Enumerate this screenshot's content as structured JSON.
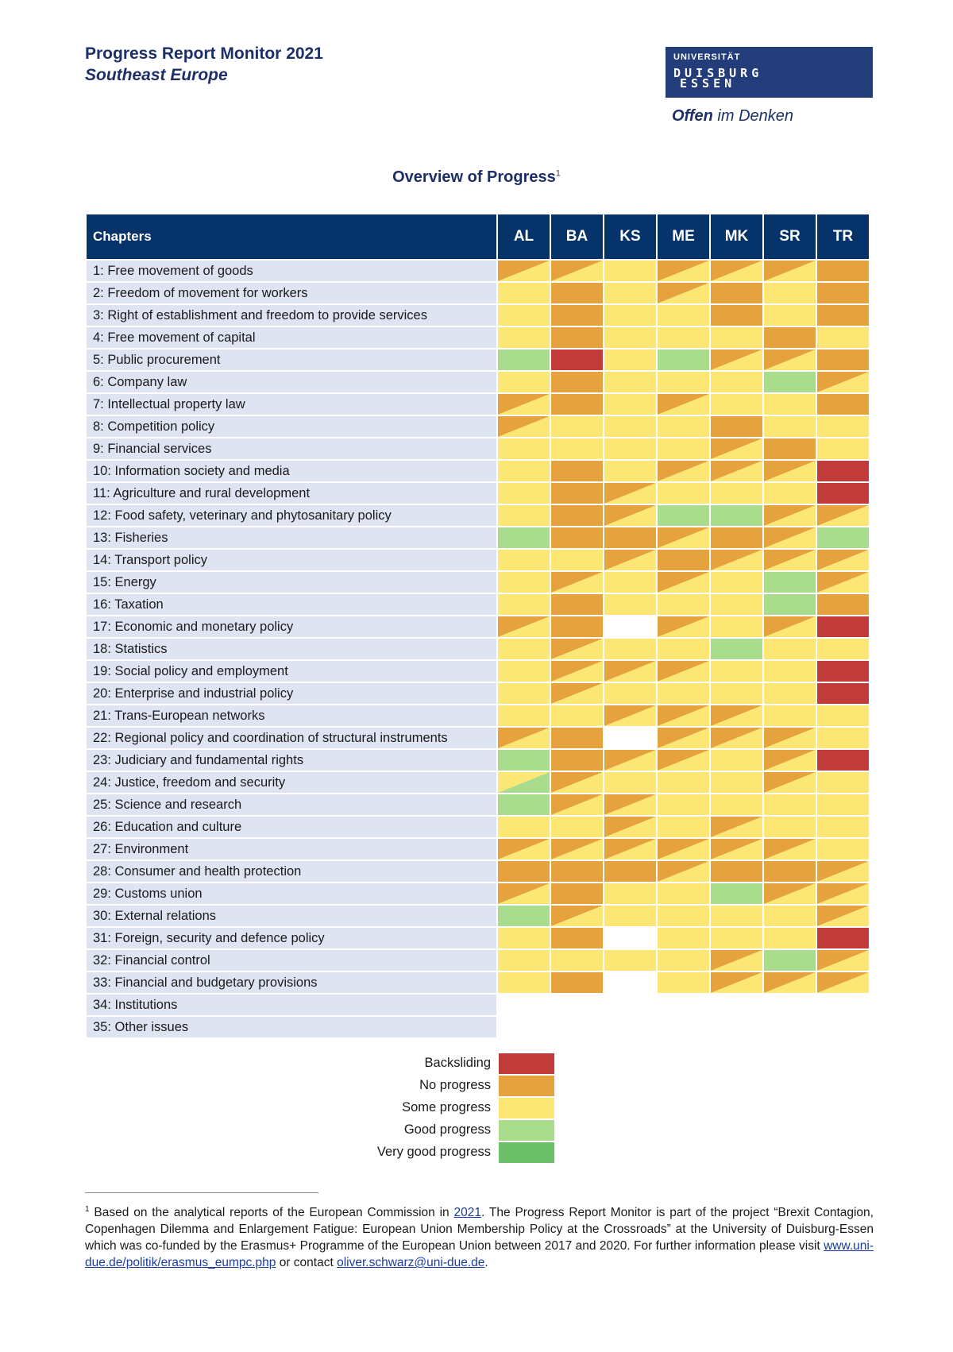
{
  "header": {
    "title": "Progress Report Monitor 2021",
    "subtitle": "Southeast Europe"
  },
  "logo": {
    "line1": "UNIVERSITÄT",
    "line2": "DUISBURG",
    "line3": "ESSEN",
    "slogan_bold": "Offen",
    "slogan_rest": " im Denken"
  },
  "overview": {
    "title": "Overview of Progress",
    "footnote_mark": "1"
  },
  "table": {
    "chapters_header": "Chapters",
    "countries": [
      "AL",
      "BA",
      "KS",
      "ME",
      "MK",
      "SR",
      "TR"
    ],
    "rows": [
      {
        "label": "1: Free movement of goods",
        "cells": [
          "D-NS",
          "D-NS",
          "S",
          "D-NS",
          "D-NS",
          "D-NS",
          "N"
        ]
      },
      {
        "label": "2: Freedom of movement for workers",
        "cells": [
          "S",
          "N",
          "S",
          "D-NS",
          "N",
          "S",
          "N"
        ]
      },
      {
        "label": "3: Right of establishment and freedom to provide services",
        "cells": [
          "S",
          "N",
          "S",
          "S",
          "N",
          "S",
          "N"
        ]
      },
      {
        "label": "4: Free movement of capital",
        "cells": [
          "S",
          "N",
          "S",
          "S",
          "S",
          "N",
          "S"
        ]
      },
      {
        "label": "5: Public procurement",
        "cells": [
          "G",
          "B",
          "S",
          "G",
          "D-NS",
          "D-NS",
          "N"
        ]
      },
      {
        "label": "6: Company law",
        "cells": [
          "S",
          "N",
          "S",
          "S",
          "S",
          "G",
          "D-NS"
        ]
      },
      {
        "label": "7: Intellectual property law",
        "cells": [
          "D-NS",
          "N",
          "S",
          "D-NS",
          "S",
          "S",
          "N"
        ]
      },
      {
        "label": "8: Competition policy",
        "cells": [
          "D-NS",
          "S",
          "S",
          "S",
          "N",
          "S",
          "S"
        ]
      },
      {
        "label": "9: Financial services",
        "cells": [
          "S",
          "S",
          "S",
          "S",
          "D-NS",
          "N",
          "S"
        ]
      },
      {
        "label": "10: Information society and media",
        "cells": [
          "S",
          "N",
          "S",
          "D-NS",
          "D-NS",
          "D-NS",
          "B"
        ]
      },
      {
        "label": "11: Agriculture and rural development",
        "cells": [
          "S",
          "N",
          "D-NS",
          "S",
          "S",
          "S",
          "B"
        ]
      },
      {
        "label": "12: Food safety, veterinary and phytosanitary policy",
        "cells": [
          "S",
          "N",
          "D-NS",
          "G",
          "G",
          "D-NS",
          "D-NS"
        ]
      },
      {
        "label": "13: Fisheries",
        "cells": [
          "G",
          "N",
          "N",
          "D-NS",
          "N",
          "D-NS",
          "G"
        ]
      },
      {
        "label": "14: Transport policy",
        "cells": [
          "S",
          "S",
          "D-NS",
          "N",
          "D-NS",
          "D-NS",
          "D-NS"
        ]
      },
      {
        "label": "15: Energy",
        "cells": [
          "S",
          "D-NS",
          "S",
          "D-NS",
          "S",
          "G",
          "D-NS"
        ]
      },
      {
        "label": "16: Taxation",
        "cells": [
          "S",
          "N",
          "S",
          "S",
          "S",
          "G",
          "N"
        ]
      },
      {
        "label": "17: Economic and monetary policy",
        "cells": [
          "D-NS",
          "N",
          "E",
          "D-NS",
          "S",
          "D-NS",
          "B"
        ]
      },
      {
        "label": "18: Statistics",
        "cells": [
          "S",
          "D-NS",
          "S",
          "S",
          "G",
          "S",
          "S"
        ]
      },
      {
        "label": "19: Social policy and employment",
        "cells": [
          "S",
          "D-NS",
          "D-NS",
          "D-NS",
          "S",
          "S",
          "B"
        ]
      },
      {
        "label": "20: Enterprise and industrial policy",
        "cells": [
          "S",
          "D-NS",
          "S",
          "S",
          "S",
          "S",
          "B"
        ]
      },
      {
        "label": "21: Trans-European networks",
        "cells": [
          "S",
          "S",
          "D-NS",
          "D-NS",
          "D-NS",
          "S",
          "S"
        ]
      },
      {
        "label": "22: Regional policy and coordination of structural instruments",
        "cells": [
          "D-NS",
          "N",
          "E",
          "D-NS",
          "D-NS",
          "D-NS",
          "S"
        ]
      },
      {
        "label": "23: Judiciary and fundamental rights",
        "cells": [
          "G",
          "N",
          "D-NS",
          "D-NS",
          "S",
          "D-NS",
          "B"
        ]
      },
      {
        "label": "24: Justice, freedom and security",
        "cells": [
          "D-SG",
          "D-NS",
          "S",
          "S",
          "S",
          "D-NS",
          "S"
        ]
      },
      {
        "label": "25: Science and research",
        "cells": [
          "G",
          "D-NS",
          "D-NS",
          "S",
          "S",
          "S",
          "S"
        ]
      },
      {
        "label": "26: Education and culture",
        "cells": [
          "S",
          "S",
          "D-NS",
          "S",
          "D-NS",
          "S",
          "S"
        ]
      },
      {
        "label": "27: Environment",
        "cells": [
          "D-NS",
          "D-NS",
          "D-NS",
          "D-NS",
          "D-NS",
          "D-NS",
          "S"
        ]
      },
      {
        "label": "28: Consumer and health protection",
        "cells": [
          "N",
          "N",
          "N",
          "D-NS",
          "N",
          "N",
          "D-NS"
        ]
      },
      {
        "label": "29: Customs union",
        "cells": [
          "D-NS",
          "N",
          "S",
          "S",
          "G",
          "D-NS",
          "D-NS"
        ]
      },
      {
        "label": "30: External relations",
        "cells": [
          "G",
          "D-NS",
          "S",
          "S",
          "S",
          "S",
          "D-NS"
        ]
      },
      {
        "label": "31: Foreign, security and defence policy",
        "cells": [
          "S",
          "N",
          "E",
          "S",
          "S",
          "S",
          "B"
        ]
      },
      {
        "label": "32: Financial control",
        "cells": [
          "S",
          "S",
          "S",
          "S",
          "D-NS",
          "G",
          "D-NS"
        ]
      },
      {
        "label": "33: Financial and budgetary provisions",
        "cells": [
          "S",
          "N",
          "E",
          "S",
          "D-NS",
          "D-NS",
          "D-NS"
        ]
      },
      {
        "label": "34: Institutions",
        "cells": [
          "E",
          "E",
          "E",
          "E",
          "E",
          "E",
          "E"
        ]
      },
      {
        "label": "35: Other issues",
        "cells": [
          "E",
          "E",
          "E",
          "E",
          "E",
          "E",
          "E"
        ]
      }
    ]
  },
  "legend": [
    {
      "label": "Backsliding",
      "color": "#c23b3b"
    },
    {
      "label": "No progress",
      "color": "#e6a23c"
    },
    {
      "label": "Some progress",
      "color": "#fce774"
    },
    {
      "label": "Good progress",
      "color": "#a9dc8c"
    },
    {
      "label": "Very good progress",
      "color": "#6cc067"
    }
  ],
  "colors": {
    "B": "#c23b3b",
    "N": "#e6a23c",
    "S": "#fce774",
    "G": "#a9dc8c",
    "V": "#6cc067",
    "header_bg": "#07336b",
    "label_bg": "#dfe4f3"
  },
  "footnote": {
    "mark": "1",
    "text1": " Based on the analytical reports of the European Commission in ",
    "link1": "2021",
    "text2": ". The Progress Report Monitor is part of the project “Brexit Contagion, Copenhagen Dilemma and Enlargement Fatigue: European Union Membership Policy at the Crossroads” at the University of Duisburg-Essen which was co-funded by the Erasmus+ Programme of the European Union between 2017 and 2020. For further information please visit ",
    "link2": "www.uni-due.de/politik/erasmus_eumpc.php",
    "text3": " or contact ",
    "link3": "oliver.schwarz@uni-due.de",
    "text4": "."
  }
}
